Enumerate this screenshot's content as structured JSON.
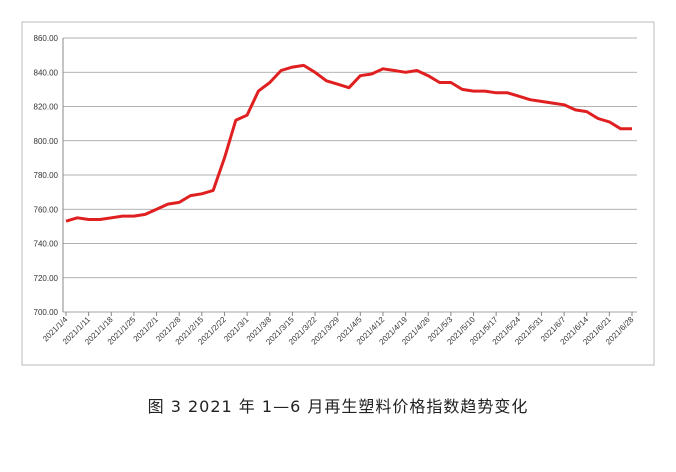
{
  "chart_data": {
    "type": "line",
    "caption": "图 3  2021 年 1—6 月再生塑料价格指数趋势变化",
    "categories": [
      "2021/1/4",
      null,
      "2021/1/11",
      null,
      "2021/1/18",
      null,
      "2021/1/25",
      null,
      "2021/2/1",
      null,
      "2021/2/8",
      null,
      "2021/2/15",
      null,
      "2021/2/22",
      null,
      "2021/3/1",
      null,
      "2021/3/8",
      null,
      "2021/3/15",
      null,
      "2021/3/22",
      null,
      "2021/3/29",
      null,
      "2021/4/5",
      null,
      "2021/4/12",
      null,
      "2021/4/19",
      null,
      "2021/4/26",
      null,
      "2021/5/3",
      null,
      "2021/5/10",
      null,
      "2021/5/17",
      null,
      "2021/5/24",
      null,
      "2021/5/31",
      null,
      "2021/6/7",
      null,
      "2021/6/14",
      null,
      "2021/6/21",
      null,
      "2021/6/28"
    ],
    "series": [
      {
        "color": "#e02020",
        "values": [
          753,
          755,
          754,
          754,
          755,
          756,
          756,
          757,
          760,
          763,
          764,
          768,
          769,
          771,
          790,
          812,
          815,
          829,
          834,
          841,
          843,
          844,
          840,
          835,
          833,
          831,
          838,
          839,
          842,
          841,
          840,
          841,
          838,
          834,
          834,
          830,
          829,
          829,
          828,
          828,
          826,
          824,
          823,
          822,
          821,
          818,
          817,
          813,
          811,
          807,
          807
        ]
      }
    ],
    "ylim": [
      700,
      860
    ],
    "yticks": [
      {
        "value": 700,
        "label": "700.00"
      },
      {
        "value": 720,
        "label": "720.00"
      },
      {
        "value": 740,
        "label": "740.00"
      },
      {
        "value": 760,
        "label": "760.00"
      },
      {
        "value": 780,
        "label": "780.00"
      },
      {
        "value": 800,
        "label": "800.00"
      },
      {
        "value": 820,
        "label": "820.00"
      },
      {
        "value": 840,
        "label": "840.00"
      },
      {
        "value": 860,
        "label": "860.00"
      }
    ],
    "grid": true
  }
}
